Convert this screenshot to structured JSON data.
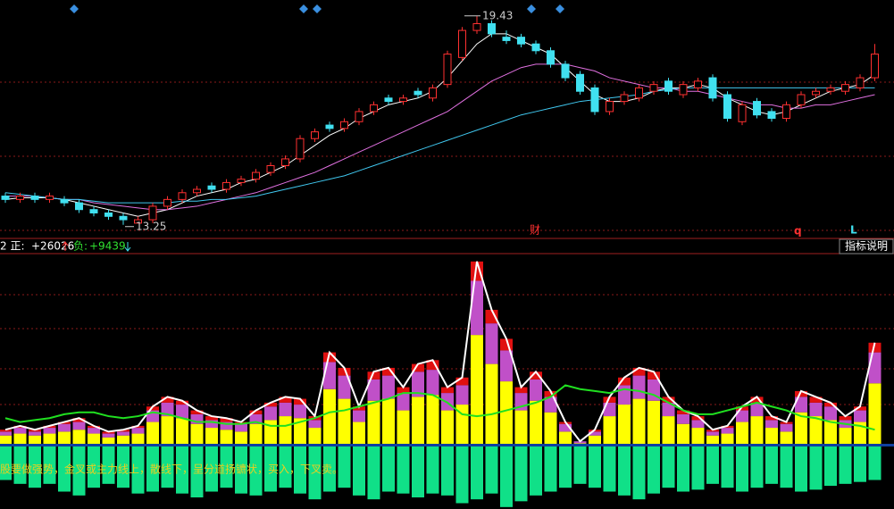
{
  "chart_data": [
    {
      "type": "candlestick",
      "ylim": [
        12.9,
        19.9
      ],
      "up_color": "#ff3030",
      "down_color": "#40e0f0",
      "open": [
        14.1,
        14.0,
        14.1,
        14.0,
        14.0,
        13.9,
        13.7,
        13.6,
        13.5,
        13.3,
        13.4,
        13.8,
        14.0,
        14.2,
        14.4,
        14.3,
        14.5,
        14.6,
        14.8,
        15.0,
        15.2,
        15.8,
        16.2,
        16.1,
        16.3,
        16.6,
        17.0,
        16.9,
        17.2,
        17.0,
        17.4,
        18.2,
        19.0,
        19.2,
        18.8,
        18.8,
        18.6,
        18.4,
        18.0,
        17.7,
        17.3,
        16.6,
        16.9,
        17.0,
        17.2,
        17.5,
        17.1,
        17.3,
        17.6,
        17.1,
        16.3,
        16.9,
        16.6,
        16.4,
        16.8,
        17.1,
        17.2,
        17.2,
        17.3,
        17.6
      ],
      "high": [
        14.2,
        14.2,
        14.2,
        14.2,
        14.1,
        14.0,
        13.8,
        13.7,
        13.6,
        13.5,
        13.9,
        14.1,
        14.3,
        14.4,
        14.5,
        14.6,
        14.7,
        14.9,
        15.1,
        15.3,
        15.9,
        16.1,
        16.3,
        16.4,
        16.7,
        16.9,
        17.1,
        17.1,
        17.3,
        17.4,
        18.4,
        19.1,
        19.43,
        19.3,
        19.0,
        18.9,
        18.7,
        18.5,
        18.1,
        17.8,
        17.4,
        17.0,
        17.2,
        17.4,
        17.5,
        17.6,
        17.5,
        17.6,
        17.7,
        17.2,
        16.9,
        17.0,
        16.7,
        16.9,
        17.2,
        17.3,
        17.4,
        17.5,
        17.7,
        18.6
      ],
      "low": [
        13.9,
        13.9,
        13.9,
        13.9,
        13.8,
        13.6,
        13.5,
        13.4,
        13.25,
        13.3,
        13.3,
        13.7,
        13.9,
        14.1,
        14.2,
        14.2,
        14.4,
        14.5,
        14.7,
        14.9,
        15.1,
        15.7,
        16.0,
        16.0,
        16.2,
        16.5,
        16.8,
        16.8,
        17.0,
        16.9,
        17.3,
        18.1,
        18.9,
        18.8,
        18.6,
        18.5,
        18.3,
        17.9,
        17.5,
        17.1,
        16.5,
        16.5,
        16.8,
        16.9,
        17.1,
        17.1,
        17.0,
        17.2,
        16.9,
        16.3,
        16.2,
        16.4,
        16.3,
        16.3,
        16.7,
        17.0,
        17.1,
        17.1,
        17.2,
        17.5
      ],
      "close": [
        14.0,
        14.1,
        14.0,
        14.1,
        13.9,
        13.7,
        13.6,
        13.5,
        13.4,
        13.4,
        13.8,
        14.0,
        14.2,
        14.3,
        14.3,
        14.5,
        14.6,
        14.8,
        15.0,
        15.2,
        15.8,
        16.0,
        16.1,
        16.3,
        16.6,
        16.8,
        16.9,
        17.0,
        17.1,
        17.3,
        18.3,
        19.0,
        19.2,
        18.9,
        18.7,
        18.6,
        18.4,
        18.0,
        17.6,
        17.2,
        16.6,
        16.9,
        17.1,
        17.3,
        17.4,
        17.2,
        17.4,
        17.5,
        17.0,
        16.4,
        16.8,
        16.5,
        16.4,
        16.8,
        17.1,
        17.2,
        17.3,
        17.4,
        17.6,
        18.3
      ],
      "lines": [
        {
          "color": "#ffffff",
          "values": [
            14.0,
            14.05,
            14.05,
            14.05,
            14.0,
            13.9,
            13.8,
            13.7,
            13.6,
            13.5,
            13.6,
            13.7,
            13.9,
            14.1,
            14.2,
            14.3,
            14.5,
            14.6,
            14.8,
            15.0,
            15.3,
            15.6,
            15.9,
            16.1,
            16.4,
            16.6,
            16.8,
            16.9,
            17.0,
            17.2,
            17.6,
            18.1,
            18.6,
            18.9,
            18.9,
            18.7,
            18.5,
            18.3,
            17.9,
            17.5,
            17.1,
            16.9,
            16.9,
            17.0,
            17.2,
            17.3,
            17.3,
            17.4,
            17.3,
            17.0,
            16.8,
            16.6,
            16.5,
            16.6,
            16.8,
            17.0,
            17.2,
            17.3,
            17.4,
            17.7
          ]
        },
        {
          "color": "#e070e0",
          "values": [
            14.1,
            14.1,
            14.1,
            14.05,
            14.0,
            14.0,
            13.9,
            13.85,
            13.8,
            13.75,
            13.7,
            13.7,
            13.75,
            13.8,
            13.9,
            14.0,
            14.1,
            14.2,
            14.35,
            14.5,
            14.65,
            14.8,
            15.0,
            15.2,
            15.4,
            15.6,
            15.8,
            16.0,
            16.2,
            16.4,
            16.6,
            16.9,
            17.2,
            17.5,
            17.7,
            17.9,
            18.0,
            18.0,
            18.0,
            17.9,
            17.8,
            17.6,
            17.5,
            17.4,
            17.3,
            17.3,
            17.2,
            17.2,
            17.1,
            17.0,
            16.9,
            16.8,
            16.8,
            16.7,
            16.7,
            16.8,
            16.8,
            16.9,
            17.0,
            17.1
          ]
        },
        {
          "color": "#40c8f0",
          "values": [
            14.2,
            14.15,
            14.1,
            14.05,
            14.0,
            14.0,
            13.95,
            13.9,
            13.9,
            13.9,
            13.9,
            13.9,
            13.95,
            13.95,
            14.0,
            14.0,
            14.05,
            14.1,
            14.2,
            14.3,
            14.4,
            14.5,
            14.6,
            14.7,
            14.85,
            15.0,
            15.15,
            15.3,
            15.45,
            15.6,
            15.75,
            15.9,
            16.05,
            16.2,
            16.35,
            16.5,
            16.6,
            16.7,
            16.8,
            16.9,
            16.95,
            17.0,
            17.05,
            17.1,
            17.2,
            17.25,
            17.3,
            17.3,
            17.3,
            17.3,
            17.3,
            17.3,
            17.3,
            17.3,
            17.3,
            17.3,
            17.3,
            17.3,
            17.3,
            17.3
          ]
        }
      ],
      "max_label": 19.43,
      "min_label": 13.25,
      "markers": [
        "财",
        "q",
        "L"
      ]
    },
    {
      "type": "stacked-bar",
      "ylim": [
        -33,
        100
      ],
      "header": {
        "prefix": "2 正:",
        "positive": "+26026",
        "negative_label": "负:",
        "negative": "+9439",
        "button": "指标说明"
      },
      "series": [
        {
          "color": "#ffff00",
          "values": [
            5,
            6,
            5,
            6,
            7,
            8,
            6,
            4,
            5,
            6,
            12,
            15,
            14,
            11,
            9,
            8,
            7,
            11,
            13,
            15,
            14,
            9,
            29,
            24,
            12,
            23,
            24,
            18,
            25,
            26,
            18,
            21,
            57,
            42,
            33,
            18,
            23,
            17,
            7,
            1,
            5,
            15,
            21,
            24,
            23,
            15,
            11,
            9,
            5,
            6,
            12,
            15,
            9,
            7,
            17,
            15,
            13,
            9,
            12,
            32
          ]
        },
        {
          "color": "#c050c8",
          "values": [
            2,
            3,
            2,
            3,
            4,
            4,
            3,
            2,
            2,
            3,
            6,
            7,
            7,
            5,
            4,
            4,
            4,
            5,
            7,
            7,
            7,
            4,
            14,
            12,
            6,
            11,
            12,
            9,
            13,
            13,
            9,
            10,
            28,
            21,
            16,
            9,
            11,
            8,
            4,
            1,
            2,
            7,
            10,
            12,
            11,
            7,
            5,
            4,
            2,
            3,
            6,
            7,
            4,
            4,
            8,
            7,
            7,
            4,
            6,
            16
          ]
        },
        {
          "color": "#e01010",
          "values": [
            1,
            1,
            1,
            1,
            1,
            2,
            1,
            1,
            1,
            1,
            2,
            3,
            2,
            2,
            2,
            2,
            1,
            2,
            2,
            3,
            3,
            2,
            5,
            4,
            2,
            4,
            4,
            3,
            4,
            5,
            3,
            4,
            10,
            7,
            6,
            3,
            4,
            3,
            1,
            0,
            1,
            3,
            4,
            4,
            4,
            3,
            2,
            2,
            1,
            1,
            2,
            3,
            2,
            1,
            3,
            3,
            2,
            2,
            2,
            5
          ]
        },
        {
          "color": "#10e088",
          "values": [
            -18,
            -20,
            -22,
            -20,
            -24,
            -26,
            -22,
            -20,
            -22,
            -25,
            -24,
            -22,
            -25,
            -27,
            -24,
            -22,
            -25,
            -26,
            -24,
            -22,
            -25,
            -28,
            -24,
            -22,
            -26,
            -28,
            -24,
            -25,
            -27,
            -25,
            -26,
            -30,
            -28,
            -25,
            -32,
            -29,
            -26,
            -24,
            -22,
            -20,
            -22,
            -24,
            -26,
            -28,
            -25,
            -22,
            -24,
            -23,
            -20,
            -22,
            -24,
            -22,
            -20,
            -22,
            -24,
            -23,
            -21,
            -20,
            -19,
            -18
          ]
        }
      ],
      "line": {
        "color": "#20e020",
        "values": [
          14,
          12,
          13,
          14,
          16,
          17,
          17,
          15,
          14,
          15,
          17,
          16,
          14,
          12,
          12,
          11,
          11,
          12,
          10,
          10,
          12,
          14,
          17,
          18,
          20,
          22,
          24,
          27,
          27,
          26,
          22,
          16,
          15,
          16,
          18,
          20,
          22,
          25,
          31,
          29,
          28,
          27,
          29,
          28,
          26,
          22,
          18,
          16,
          16,
          18,
          20,
          22,
          20,
          18,
          15,
          14,
          12,
          11,
          10,
          8
        ]
      },
      "note": "股要做强势，金叉或主力线上，散线下，呈分道扬镳状，买入，下叉卖。"
    }
  ]
}
